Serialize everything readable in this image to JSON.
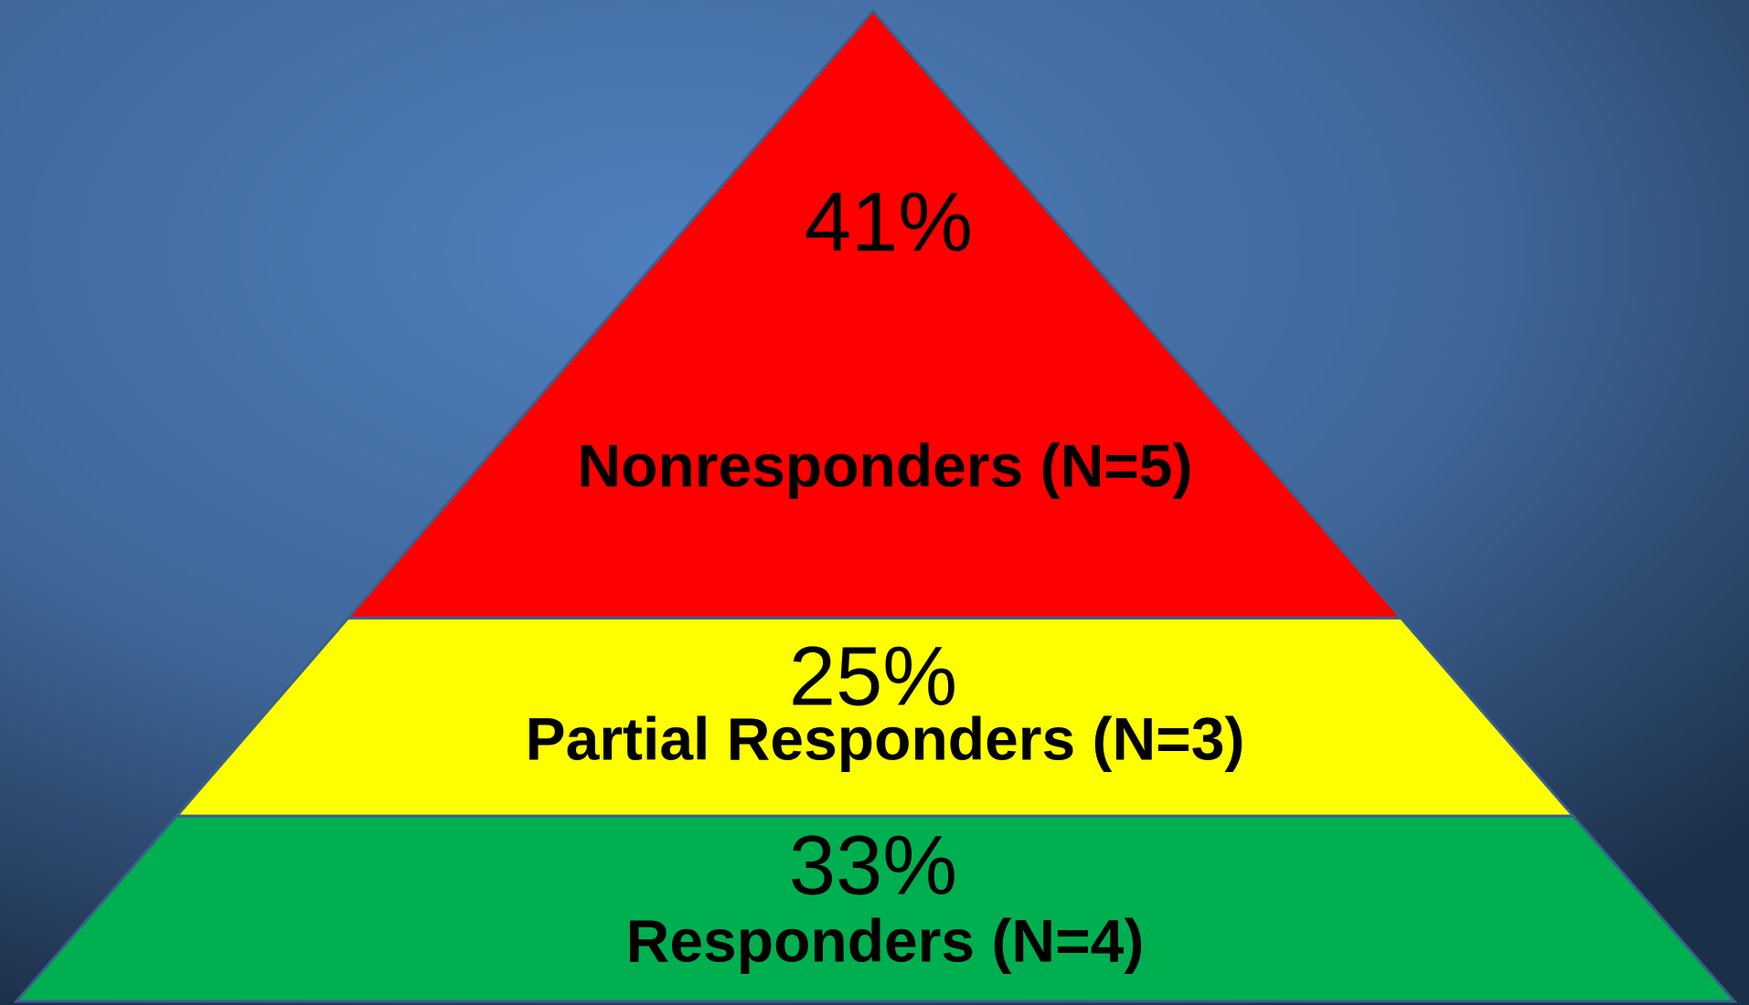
{
  "chart_data": {
    "type": "pyramid",
    "categories": [
      "Nonresponders (N=5)",
      "Partial Responders (N=3)",
      "Responders (N=4)"
    ],
    "values": [
      41,
      25,
      33
    ],
    "value_labels": [
      "41%",
      "25%",
      "33%"
    ],
    "colors": [
      "#ff0000",
      "#ffff00",
      "#00b050"
    ]
  }
}
